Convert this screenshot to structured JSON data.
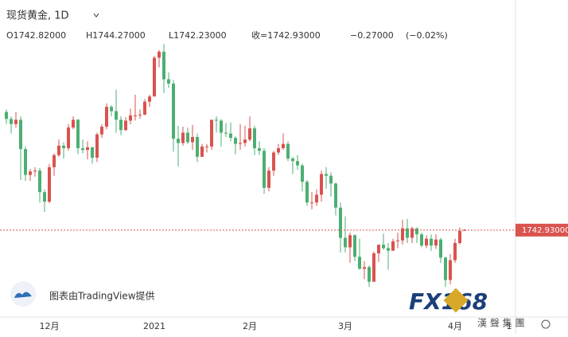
{
  "chart_data": {
    "type": "candlestick",
    "title": "现货黄金, 1D",
    "header": {
      "open": "O1742.82000",
      "high": "H1744.27000",
      "low": "L1742.23000",
      "close": "收=1742.93000",
      "change": "−0.27000",
      "change_pct": "(−0.02%)"
    },
    "watermark": "图表由TradingView提供",
    "logo": {
      "brand": "FX168",
      "sub": "漢 聲 集 團"
    },
    "up_color": "#d9534f",
    "down_color": "#4caf73",
    "last_price": {
      "value": 1742.93,
      "label": "1742.93000"
    },
    "ylim": [
      1642,
      2010
    ],
    "x_edge_label": "1",
    "categories": [
      null,
      null,
      null,
      null,
      null,
      null,
      null,
      null,
      null,
      "12月",
      null,
      null,
      null,
      null,
      null,
      null,
      null,
      null,
      null,
      null,
      null,
      null,
      null,
      null,
      null,
      null,
      null,
      null,
      null,
      null,
      null,
      "2021",
      null,
      null,
      null,
      null,
      null,
      null,
      null,
      null,
      null,
      null,
      null,
      null,
      null,
      null,
      null,
      null,
      null,
      null,
      null,
      "2月",
      null,
      null,
      null,
      null,
      null,
      null,
      null,
      null,
      null,
      null,
      null,
      null,
      null,
      null,
      null,
      null,
      null,
      null,
      null,
      "3月",
      null,
      null,
      null,
      null,
      null,
      null,
      null,
      null,
      null,
      null,
      null,
      null,
      null,
      null,
      null,
      null,
      null,
      null,
      null,
      null,
      null,
      null,
      "4月",
      null,
      null
    ],
    "open": [
      1880,
      1872,
      1866,
      1871,
      1837,
      1807,
      1811,
      1812,
      1787,
      1776,
      1816,
      1830,
      1841,
      1838,
      1862,
      1871,
      1838,
      1836,
      1839,
      1827,
      1854,
      1863,
      1886,
      1881,
      1871,
      1859,
      1870,
      1876,
      1876,
      1877,
      1892,
      1898,
      1943,
      1950,
      1918,
      1913,
      1849,
      1844,
      1856,
      1845,
      1851,
      1828,
      1840,
      1840,
      1871,
      1870,
      1856,
      1855,
      1850,
      1843,
      1844,
      1848,
      1861,
      1838,
      1835,
      1792,
      1812,
      1833,
      1838,
      1843,
      1826,
      1823,
      1818,
      1799,
      1775,
      1775,
      1784,
      1808,
      1806,
      1797,
      1769,
      1734,
      1723,
      1737,
      1712,
      1698,
      1700,
      1683,
      1716,
      1726,
      1722,
      1719,
      1730,
      1731,
      1745,
      1734,
      1745,
      1738,
      1725,
      1733,
      1725,
      1732,
      1711,
      1685,
      1708,
      1728,
      1742.82
    ],
    "high": [
      1883,
      1875,
      1880,
      1875,
      1840,
      1814,
      1816,
      1815,
      1790,
      1820,
      1832,
      1848,
      1845,
      1866,
      1875,
      1872,
      1848,
      1846,
      1840,
      1856,
      1866,
      1890,
      1888,
      1906,
      1875,
      1874,
      1884,
      1900,
      1883,
      1895,
      1900,
      1945,
      1952,
      1959,
      1926,
      1917,
      1864,
      1863,
      1862,
      1865,
      1855,
      1843,
      1843,
      1871,
      1875,
      1872,
      1867,
      1868,
      1852,
      1866,
      1864,
      1875,
      1864,
      1846,
      1838,
      1816,
      1835,
      1843,
      1855,
      1846,
      1828,
      1830,
      1820,
      1801,
      1787,
      1790,
      1812,
      1816,
      1810,
      1798,
      1775,
      1759,
      1740,
      1738,
      1733,
      1707,
      1702,
      1718,
      1726,
      1739,
      1728,
      1733,
      1740,
      1755,
      1756,
      1747,
      1746,
      1740,
      1737,
      1738,
      1738,
      1734,
      1712,
      1715,
      1733,
      1746,
      1744.27
    ],
    "low": [
      1866,
      1855,
      1862,
      1801,
      1800,
      1800,
      1805,
      1775,
      1764,
      1774,
      1806,
      1828,
      1826,
      1835,
      1860,
      1831,
      1832,
      1825,
      1820,
      1822,
      1850,
      1860,
      1875,
      1856,
      1853,
      1858,
      1866,
      1870,
      1872,
      1876,
      1886,
      1898,
      1932,
      1902,
      1908,
      1834,
      1817,
      1841,
      1843,
      1836,
      1822,
      1828,
      1833,
      1836,
      1856,
      1840,
      1851,
      1846,
      1831,
      1836,
      1840,
      1846,
      1830,
      1830,
      1785,
      1788,
      1806,
      1830,
      1836,
      1823,
      1808,
      1813,
      1788,
      1771,
      1767,
      1771,
      1776,
      1791,
      1782,
      1760,
      1717,
      1717,
      1705,
      1707,
      1697,
      1686,
      1677,
      1683,
      1706,
      1720,
      1697,
      1719,
      1722,
      1726,
      1728,
      1728,
      1728,
      1723,
      1722,
      1719,
      1721,
      1705,
      1677,
      1680,
      1705,
      1726,
      1742.23
    ],
    "close": [
      1872,
      1866,
      1871,
      1837,
      1807,
      1811,
      1812,
      1787,
      1776,
      1816,
      1830,
      1841,
      1838,
      1862,
      1871,
      1838,
      1836,
      1839,
      1827,
      1854,
      1863,
      1886,
      1881,
      1871,
      1859,
      1870,
      1876,
      1876,
      1877,
      1892,
      1898,
      1943,
      1950,
      1918,
      1913,
      1849,
      1844,
      1856,
      1845,
      1851,
      1828,
      1840,
      1840,
      1871,
      1870,
      1856,
      1855,
      1850,
      1843,
      1844,
      1848,
      1861,
      1838,
      1835,
      1792,
      1812,
      1833,
      1838,
      1843,
      1826,
      1823,
      1818,
      1799,
      1775,
      1775,
      1784,
      1808,
      1806,
      1797,
      1769,
      1734,
      1723,
      1737,
      1712,
      1698,
      1700,
      1683,
      1716,
      1726,
      1722,
      1719,
      1730,
      1731,
      1745,
      1734,
      1745,
      1738,
      1725,
      1733,
      1725,
      1732,
      1711,
      1685,
      1708,
      1728,
      1742,
      1742.93
    ]
  }
}
